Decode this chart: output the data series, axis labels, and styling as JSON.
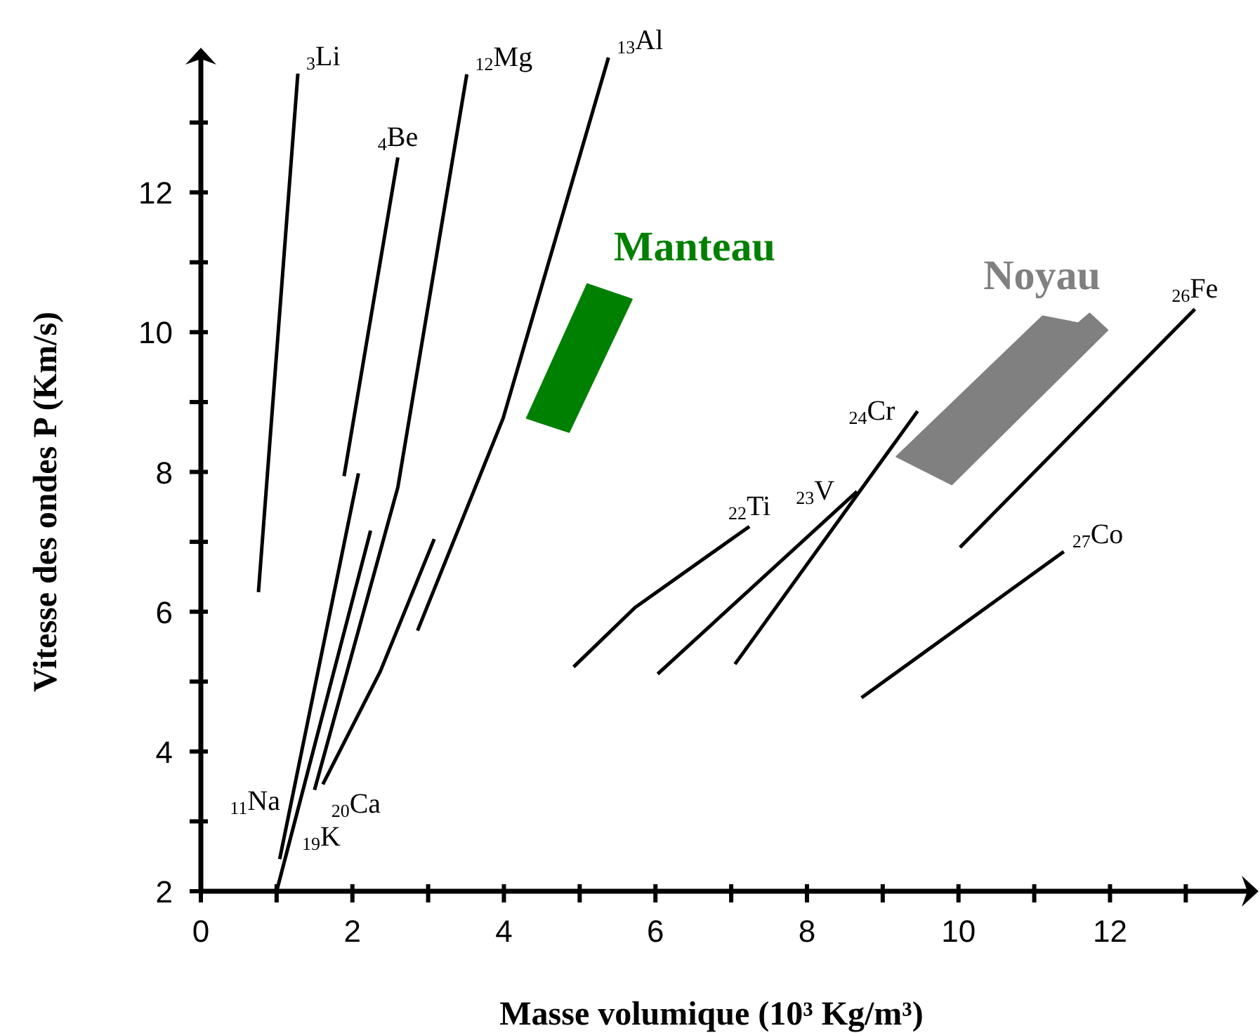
{
  "chart_data": {
    "type": "line",
    "xlabel": "Masse volumique (10³ Kg/m³)",
    "ylabel": "Vitesse des ondes P (Km/s)",
    "xlim": [
      0,
      13.85
    ],
    "ylim": [
      2,
      13.95
    ],
    "xticks": [
      0,
      {
        "value": 1,
        "label": null
      },
      2,
      {
        "value": 3,
        "label": null
      },
      4,
      {
        "value": 5,
        "label": null
      },
      6,
      {
        "value": 7,
        "label": null
      },
      8,
      {
        "value": 9,
        "label": null
      },
      10,
      {
        "value": 11,
        "label": null
      },
      12,
      {
        "value": 13,
        "label": null
      }
    ],
    "yticks": [
      2,
      {
        "value": 3,
        "label": null
      },
      4,
      {
        "value": 5,
        "label": null
      },
      6,
      {
        "value": 7,
        "label": null
      },
      8,
      {
        "value": 9,
        "label": null
      },
      10,
      {
        "value": 11,
        "label": null
      },
      12,
      {
        "value": 13,
        "label": null
      }
    ],
    "series": [
      {
        "name": "$_{3}$Li",
        "color": "#000000",
        "x": [
          0.76,
          1.28
        ],
        "values": [
          6.28,
          13.7
        ]
      },
      {
        "name": "$_{4}$Be",
        "color": "#000000",
        "x": [
          1.89,
          2.6
        ],
        "values": [
          7.94,
          12.5
        ]
      },
      {
        "name": "$_{12}$Mg",
        "color": "#000000",
        "x": [
          1.5,
          2.6,
          3.51
        ],
        "values": [
          3.45,
          7.78,
          13.69
        ]
      },
      {
        "name": "$_{13}$Al",
        "color": "#000000",
        "x": [
          2.86,
          3.99,
          5.38
        ],
        "values": [
          5.73,
          8.77,
          13.93
        ]
      },
      {
        "name": "$_{11}$Na",
        "color": "#000000",
        "x": [
          1.04,
          2.08
        ],
        "values": [
          2.46,
          7.98
        ]
      },
      {
        "name": "$_{19}$K",
        "color": "#000000",
        "x": [
          1.0,
          2.24
        ],
        "values": [
          2.0,
          7.16
        ]
      },
      {
        "name": "$_{20}$Ca",
        "color": "#000000",
        "x": [
          1.61,
          2.37,
          3.08
        ],
        "values": [
          3.53,
          5.15,
          7.04
        ]
      },
      {
        "name": "$_{22}$Ti",
        "color": "#000000",
        "x": [
          4.92,
          5.73,
          7.24
        ],
        "values": [
          5.21,
          6.06,
          7.22
        ]
      },
      {
        "name": "$_{23}$V",
        "color": "#000000",
        "x": [
          6.03,
          8.66
        ],
        "values": [
          5.11,
          7.72
        ]
      },
      {
        "name": "$_{24}$Cr",
        "color": "#000000",
        "x": [
          7.05,
          9.46
        ],
        "values": [
          5.25,
          8.87
        ]
      },
      {
        "name": "$_{26}$Fe",
        "color": "#000000",
        "x": [
          10.02,
          13.12
        ],
        "values": [
          6.92,
          10.33
        ]
      },
      {
        "name": "$_{27}$Co",
        "color": "#000000",
        "x": [
          8.72,
          11.39
        ],
        "values": [
          4.77,
          6.86
        ]
      },
      {
        "type": "area",
        "name": "Manteau",
        "color": "#008000",
        "x": [
          4.3,
          5.1,
          5.69,
          4.86
        ],
        "values": [
          8.77,
          10.69,
          10.47,
          8.57
        ]
      },
      {
        "type": "area",
        "name": "Noyau",
        "color": "#808080",
        "x": [
          9.18,
          11.11,
          11.58,
          11.73,
          11.97,
          9.91
        ],
        "values": [
          8.22,
          10.23,
          10.13,
          10.27,
          10.03,
          7.82
        ]
      }
    ]
  }
}
